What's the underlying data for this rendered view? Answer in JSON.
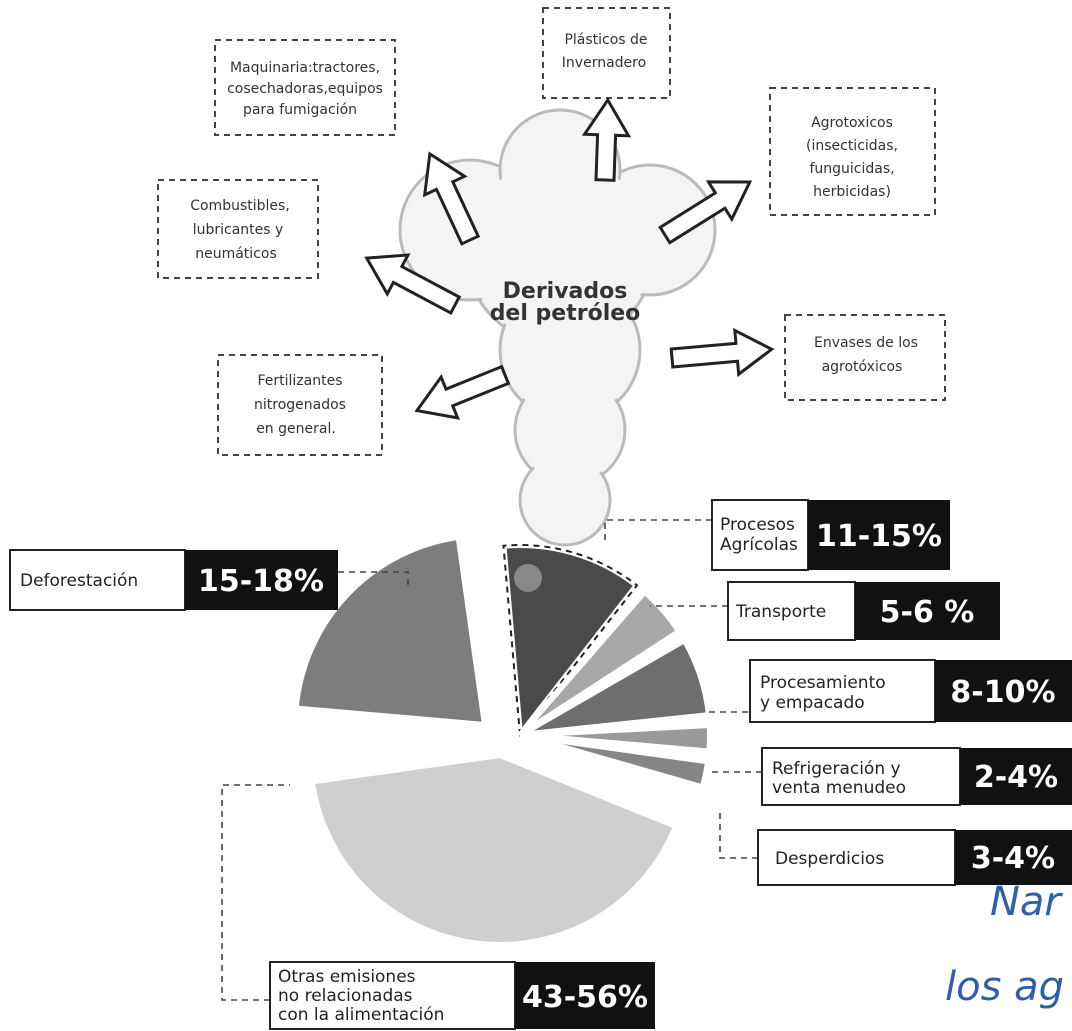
{
  "center": {
    "lines": [
      "Derivados",
      "del petróleo"
    ]
  },
  "derivatives": [
    {
      "lines": [
        "Maquinaria:tractores,",
        "cosechadoras,equipos",
        "para fumigación"
      ]
    },
    {
      "lines": [
        "Plásticos de",
        "Invernadero"
      ]
    },
    {
      "lines": [
        "Agrotoxicos",
        "(insecticidas,",
        "funguicidas,",
        "herbicidas)"
      ]
    },
    {
      "lines": [
        "Combustibles,",
        "lubricantes y",
        "neumáticos"
      ]
    },
    {
      "lines": [
        "Envases de los",
        "agrotóxicos"
      ]
    },
    {
      "lines": [
        "Fertilizantes",
        "nitrogenados",
        "en general."
      ]
    }
  ],
  "emissions": [
    {
      "lines": [
        "Procesos",
        "Agrícolas"
      ],
      "share": "11-15%"
    },
    {
      "lines": [
        "Deforestación"
      ],
      "share": "15-18%"
    },
    {
      "lines": [
        "Transporte"
      ],
      "share": "5-6 %"
    },
    {
      "lines": [
        "Procesamiento",
        "y empacado"
      ],
      "share": "8-10%"
    },
    {
      "lines": [
        "Refrigeración y",
        "venta menudeo"
      ],
      "share": "2-4%"
    },
    {
      "lines": [
        "Desperdicios"
      ],
      "share": "3-4%"
    },
    {
      "lines": [
        "Otras emisiones",
        "no relacionadas",
        "con la alimentación"
      ],
      "share": "43-56%"
    }
  ],
  "overlay": {
    "lines": [
      "Nar",
      "los ag"
    ]
  }
}
